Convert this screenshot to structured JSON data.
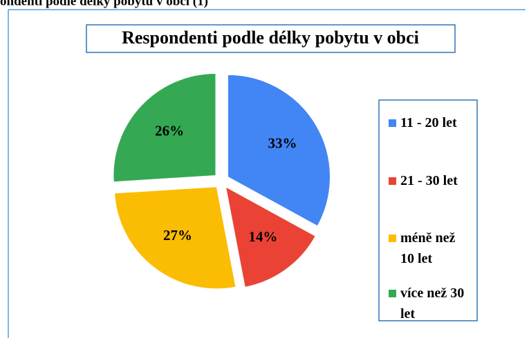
{
  "heading": "ondenti podle délky pobytu v obci (1)",
  "chart_data": {
    "type": "pie",
    "title": "Respondenti podle délky pobytu v obci",
    "categories": [
      "11 - 20 let",
      "21 - 30 let",
      "méně než 10 let",
      "více než 30 let"
    ],
    "values": [
      33,
      14,
      27,
      26
    ],
    "value_labels": [
      "33%",
      "14%",
      "27%",
      "26%"
    ],
    "colors": [
      "#4285f4",
      "#ea4335",
      "#fbbc04",
      "#34a853"
    ],
    "legend": "right"
  }
}
